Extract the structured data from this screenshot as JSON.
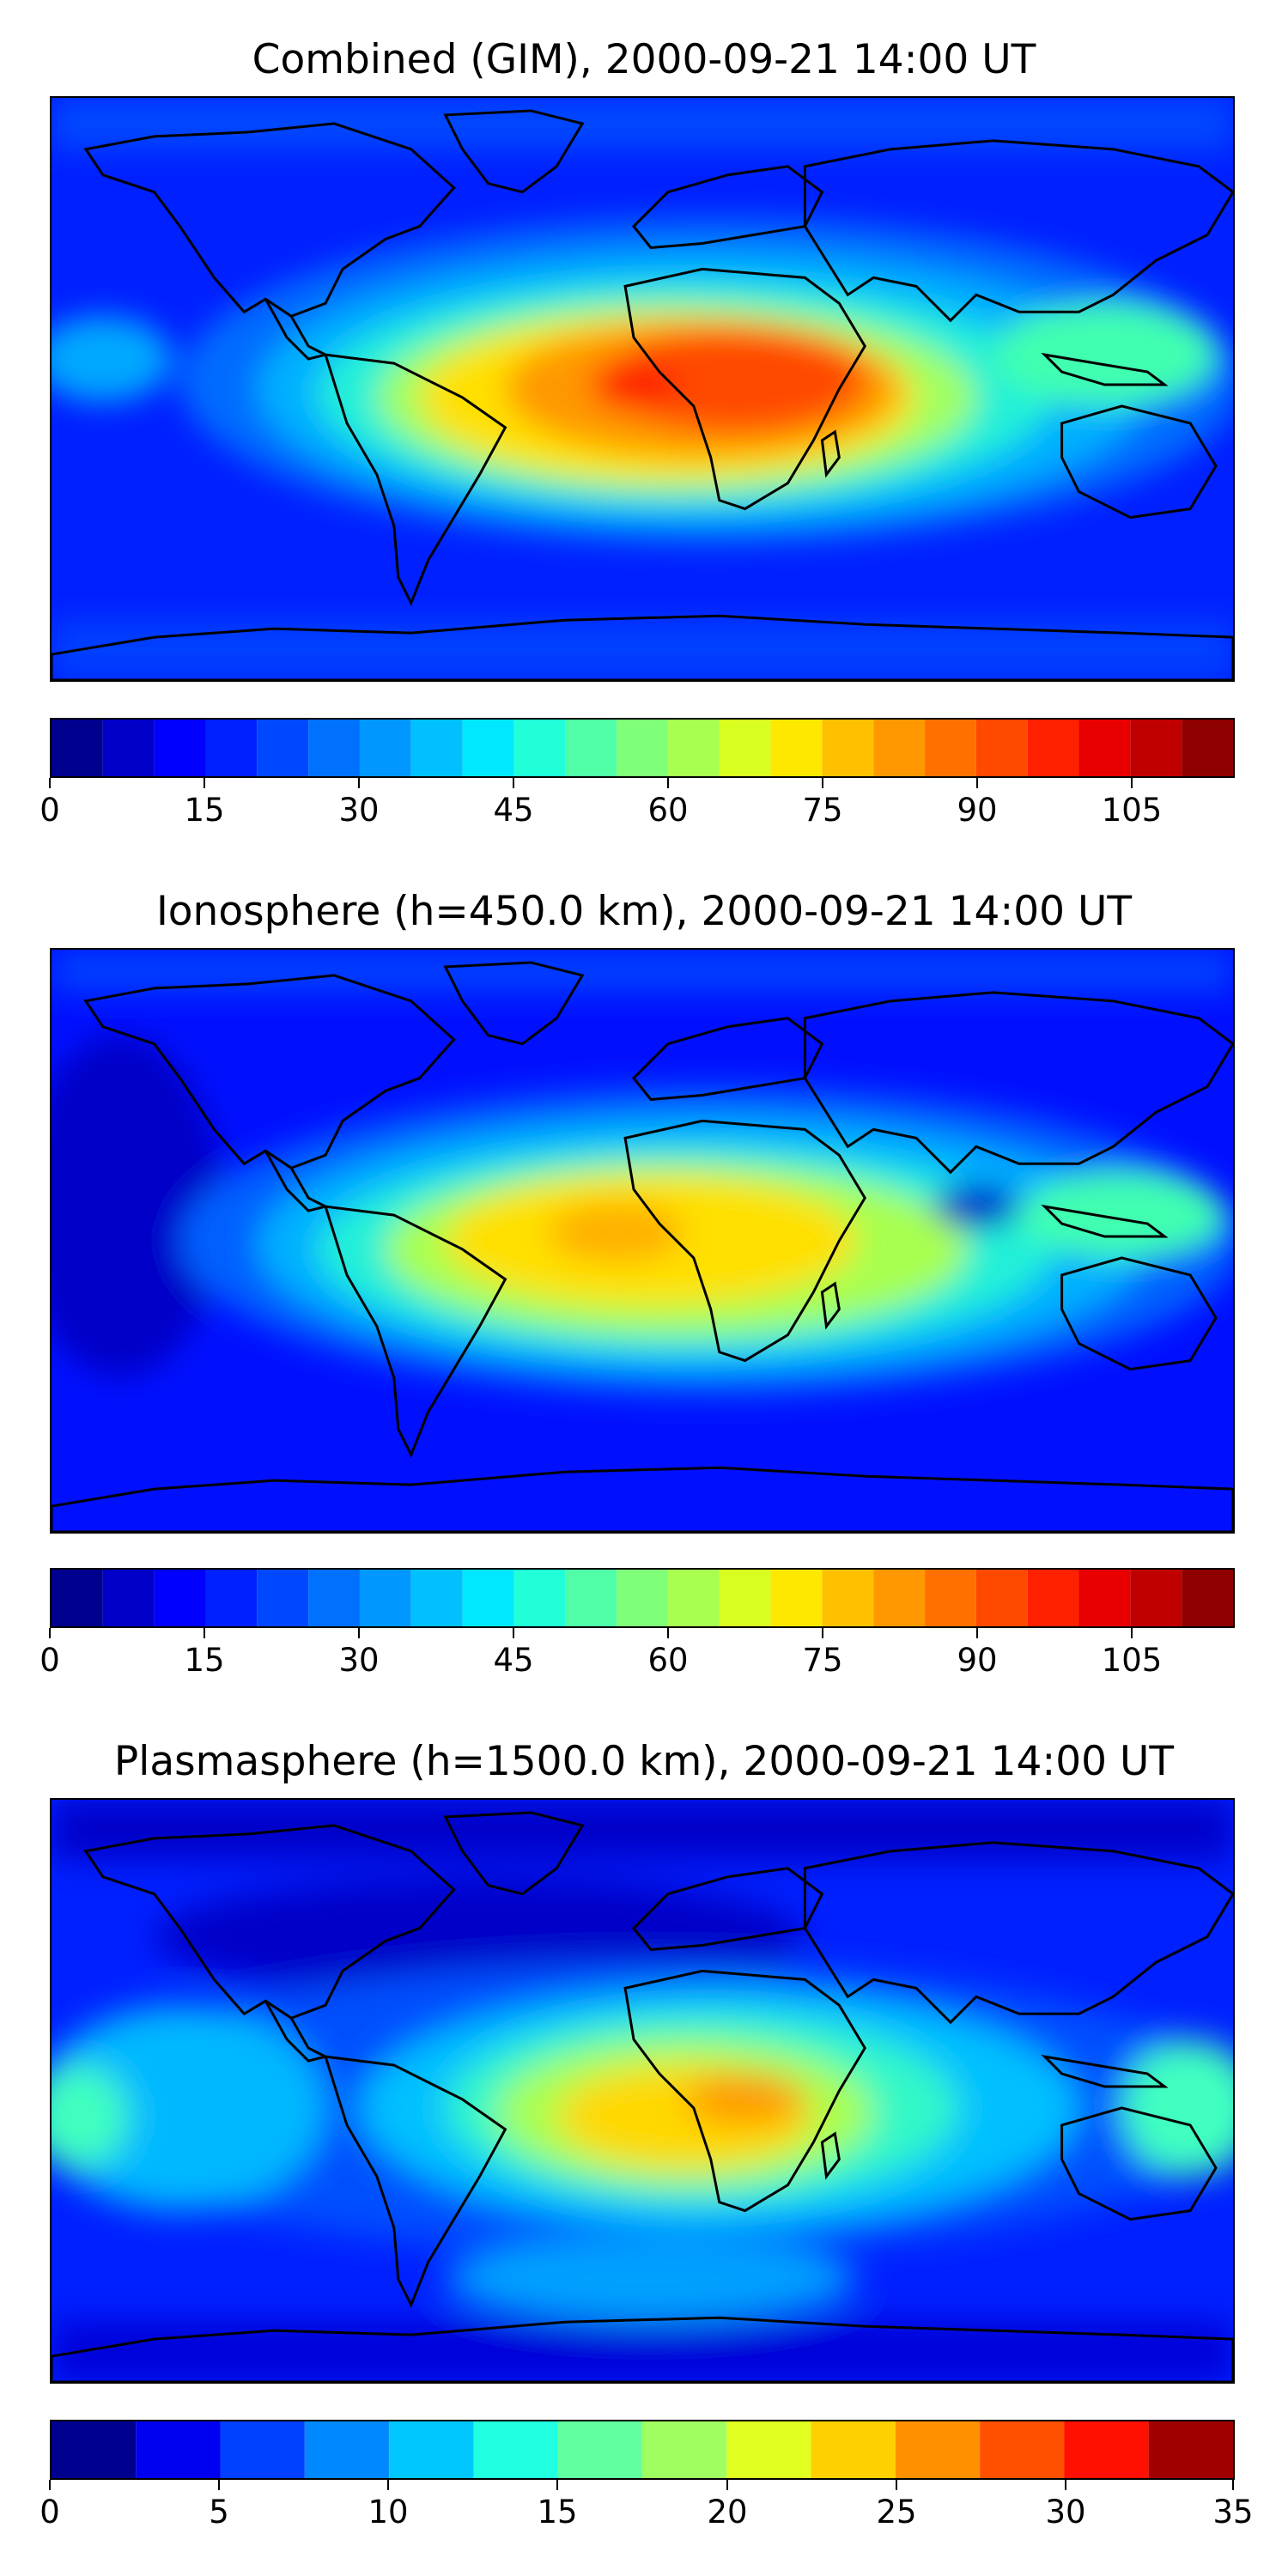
{
  "panels": [
    {
      "title": "Combined (GIM), 2000-09-21 14:00 UT",
      "colorbar_ticks": [
        "0",
        "15",
        "30",
        "45",
        "60",
        "75",
        "90",
        "105"
      ]
    },
    {
      "title": "Ionosphere  (h=450.0 km), 2000-09-21 14:00 UT",
      "colorbar_ticks": [
        "0",
        "15",
        "30",
        "45",
        "60",
        "75",
        "90",
        "105"
      ]
    },
    {
      "title": "Plasmasphere (h=1500.0 km), 2000-09-21 14:00 UT",
      "colorbar_ticks": [
        "0",
        "5",
        "10",
        "15",
        "20",
        "25",
        "30",
        "35"
      ]
    }
  ],
  "chart_data": [
    {
      "type": "heatmap",
      "title": "Combined (GIM), 2000-09-21 14:00 UT",
      "colormap": "jet",
      "colorbar_range": [
        0,
        115
      ],
      "colorbar_levels": 23,
      "colorbar_ticks": [
        0,
        15,
        30,
        45,
        60,
        75,
        90,
        105
      ]
    },
    {
      "type": "heatmap",
      "title": "Ionosphere  (h=450.0 km), 2000-09-21 14:00 UT",
      "colormap": "jet",
      "colorbar_range": [
        0,
        115
      ],
      "colorbar_levels": 23,
      "colorbar_ticks": [
        0,
        15,
        30,
        45,
        60,
        75,
        90,
        105
      ]
    },
    {
      "type": "heatmap",
      "title": "Plasmasphere (h=1500.0 km), 2000-09-21 14:00 UT",
      "colormap": "jet",
      "colorbar_range": [
        0,
        35
      ],
      "colorbar_levels": 14,
      "colorbar_ticks": [
        0,
        5,
        10,
        15,
        20,
        25,
        30,
        35
      ]
    }
  ]
}
